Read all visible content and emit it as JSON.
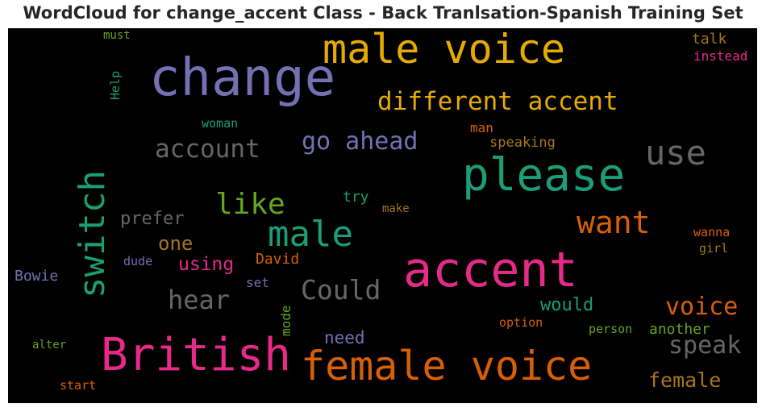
{
  "title": "WordCloud for change_accent Class - Back Tranlsation-Spanish Training Set",
  "chart_data": {
    "type": "wordcloud",
    "background": "#000000",
    "words": [
      {
        "text": "change",
        "color": "#7570b3",
        "rank": 1
      },
      {
        "text": "accent",
        "color": "#e7298a",
        "rank": 2
      },
      {
        "text": "please",
        "color": "#1b9e77",
        "rank": 3
      },
      {
        "text": "male voice",
        "color": "#e6ab02",
        "rank": 4
      },
      {
        "text": "British",
        "color": "#e7298a",
        "rank": 5
      },
      {
        "text": "female voice",
        "color": "#d95f02",
        "rank": 6
      },
      {
        "text": "switch",
        "color": "#1b9e77",
        "rank": 7,
        "orientation": "vertical"
      },
      {
        "text": "male",
        "color": "#1b9e77",
        "rank": 8
      },
      {
        "text": "use",
        "color": "#666666",
        "rank": 9
      },
      {
        "text": "different accent",
        "color": "#e6ab02",
        "rank": 10
      },
      {
        "text": "want",
        "color": "#d95f02",
        "rank": 11
      },
      {
        "text": "like",
        "color": "#66a61e",
        "rank": 12
      },
      {
        "text": "Could",
        "color": "#666666",
        "rank": 13
      },
      {
        "text": "account",
        "color": "#666666",
        "rank": 14
      },
      {
        "text": "go ahead",
        "color": "#7570b3",
        "rank": 15
      },
      {
        "text": "hear",
        "color": "#666666",
        "rank": 16
      },
      {
        "text": "speak",
        "color": "#666666",
        "rank": 17
      },
      {
        "text": "voice",
        "color": "#d95f02",
        "rank": 18
      },
      {
        "text": "female",
        "color": "#a6761d",
        "rank": 19
      },
      {
        "text": "one",
        "color": "#a6761d",
        "rank": 20
      },
      {
        "text": "using",
        "color": "#e7298a",
        "rank": 21
      },
      {
        "text": "prefer",
        "color": "#666666",
        "rank": 22
      },
      {
        "text": "would",
        "color": "#1b9e77",
        "rank": 23
      },
      {
        "text": "need",
        "color": "#7570b3",
        "rank": 24
      },
      {
        "text": "another",
        "color": "#66a61e",
        "rank": 25
      },
      {
        "text": "David",
        "color": "#d95f02",
        "rank": 26
      },
      {
        "text": "Bowie",
        "color": "#7570b3",
        "rank": 27
      },
      {
        "text": "speaking",
        "color": "#a6761d",
        "rank": 28
      },
      {
        "text": "talk",
        "color": "#a6761d",
        "rank": 29
      },
      {
        "text": "instead",
        "color": "#e7298a",
        "rank": 30
      },
      {
        "text": "try",
        "color": "#1b9e77",
        "rank": 31
      },
      {
        "text": "man",
        "color": "#d95f02",
        "rank": 32
      },
      {
        "text": "mode",
        "color": "#66a61e",
        "rank": 33,
        "orientation": "vertical"
      },
      {
        "text": "set",
        "color": "#7570b3",
        "rank": 34
      },
      {
        "text": "woman",
        "color": "#1b9e77",
        "rank": 35
      },
      {
        "text": "Help",
        "color": "#1b9e77",
        "rank": 36,
        "orientation": "vertical"
      },
      {
        "text": "wanna",
        "color": "#d95f02",
        "rank": 37
      },
      {
        "text": "girl",
        "color": "#a6761d",
        "rank": 38
      },
      {
        "text": "dude",
        "color": "#7570b3",
        "rank": 39
      },
      {
        "text": "make",
        "color": "#a6761d",
        "rank": 40
      },
      {
        "text": "option",
        "color": "#d95f02",
        "rank": 41
      },
      {
        "text": "person",
        "color": "#66a61e",
        "rank": 42
      },
      {
        "text": "must",
        "color": "#66a61e",
        "rank": 43
      },
      {
        "text": "alter",
        "color": "#66a61e",
        "rank": 44
      },
      {
        "text": "start",
        "color": "#d95f02",
        "rank": 45
      }
    ]
  }
}
